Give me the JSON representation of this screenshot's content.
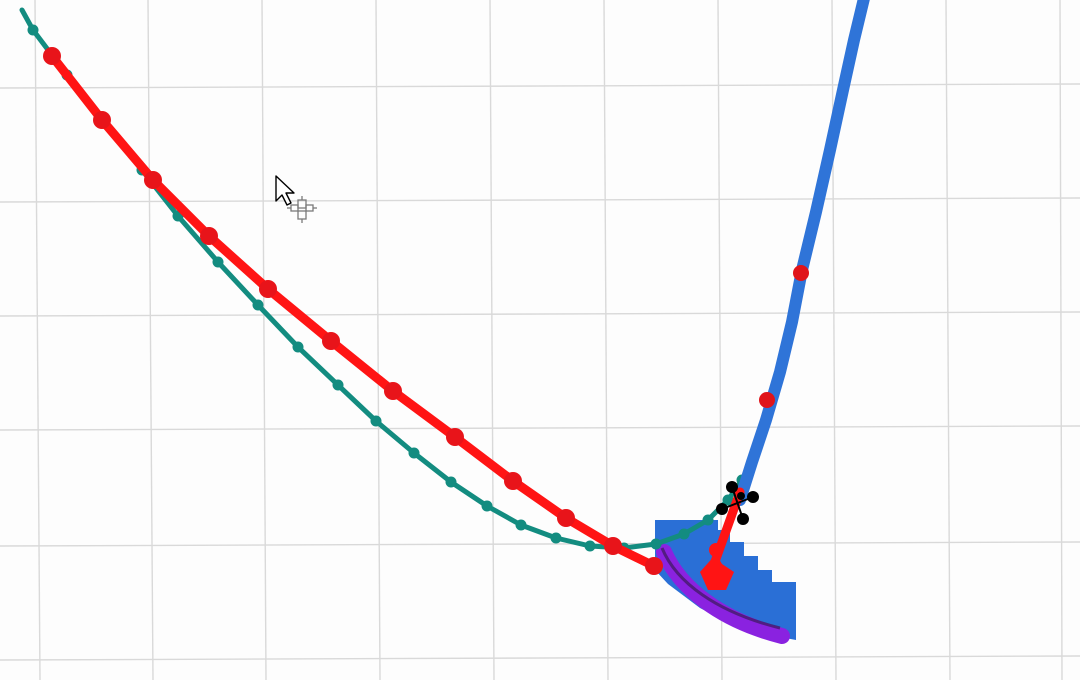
{
  "scene": {
    "background_color": "#fdfdfd",
    "grid_color": "#d9d9d9",
    "objects": [
      {
        "id": "red-curve",
        "color": "#ff1414",
        "handle_color": "#e0141a"
      },
      {
        "id": "teal-curve",
        "color": "#138c80"
      },
      {
        "id": "blue-curve",
        "color": "#2f74d8"
      },
      {
        "id": "blue-block",
        "color": "#2a6fd6"
      },
      {
        "id": "purple-arc",
        "color": "#8a22e0"
      }
    ]
  },
  "cursor": {
    "icon": "arrow-cursor-icon",
    "overlay_icon": "move-gizmo-icon"
  },
  "gizmo": {
    "icon": "transform-handle-icon",
    "color": "#000000"
  }
}
